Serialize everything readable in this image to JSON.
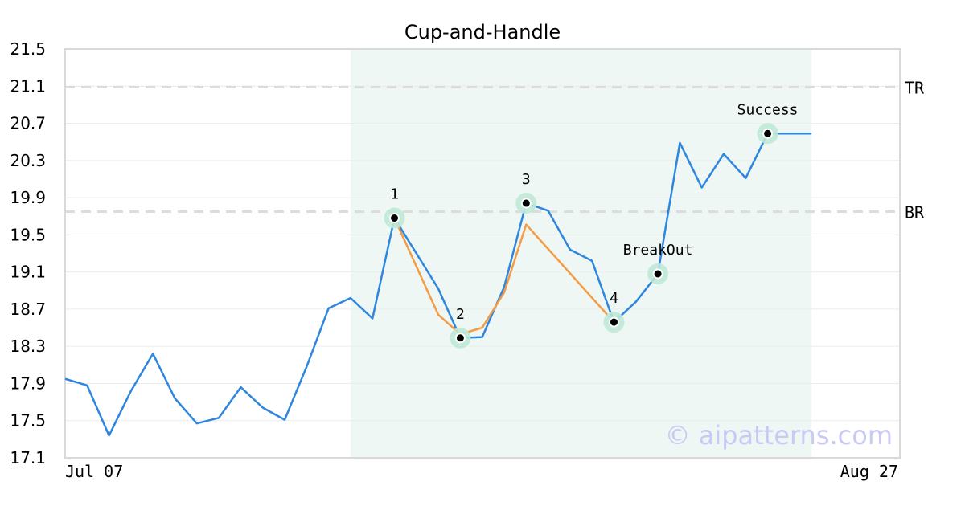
{
  "chart_data": {
    "type": "line",
    "title": "Cup-and-Handle",
    "xlabel": "",
    "ylabel": "",
    "ylim": [
      17.1,
      21.5
    ],
    "yticks": [
      "21.5",
      "21.1",
      "20.7",
      "20.3",
      "19.9",
      "19.5",
      "19.1",
      "18.7",
      "18.3",
      "17.9",
      "17.5",
      "17.1"
    ],
    "xtick_labels": [
      "Jul 07",
      "Aug 27"
    ],
    "grid": true,
    "series": [
      {
        "values": [
          17.95,
          17.88,
          17.34,
          17.82,
          18.22,
          17.74,
          17.47,
          17.53,
          17.86,
          17.64,
          17.51,
          18.08,
          18.71,
          18.82,
          18.6,
          19.68,
          19.3,
          18.92,
          18.39,
          18.4,
          18.94,
          19.84,
          19.76,
          19.34,
          19.22,
          18.56,
          18.78,
          19.08,
          20.49,
          20.01,
          20.37,
          20.11,
          20.59,
          20.59,
          20.59
        ],
        "color": "#2e86de"
      },
      {
        "points": [
          [
            15,
            19.68
          ],
          [
            17,
            18.64
          ],
          [
            18,
            18.43
          ],
          [
            19,
            18.5
          ],
          [
            20,
            18.88
          ],
          [
            21,
            19.61
          ],
          [
            25,
            18.56
          ]
        ],
        "color": "#f39c45"
      }
    ],
    "pattern_region": {
      "start_index": 13,
      "end_index": 34,
      "color": "#eef7f3"
    },
    "levels": [
      {
        "label": "TR",
        "value": 21.09
      },
      {
        "label": "BR",
        "value": 19.75
      }
    ],
    "markers": [
      {
        "label": "1",
        "index": 15,
        "value": 19.68,
        "label_pos": "above"
      },
      {
        "label": "2",
        "index": 18,
        "value": 18.39,
        "label_pos": "above"
      },
      {
        "label": "3",
        "index": 21,
        "value": 19.84,
        "label_pos": "above"
      },
      {
        "label": "4",
        "index": 25,
        "value": 18.56,
        "label_pos": "above"
      },
      {
        "label": "BreakOut",
        "index": 27,
        "value": 19.08,
        "label_pos": "above"
      },
      {
        "label": "Success",
        "index": 32,
        "value": 20.59,
        "label_pos": "above"
      }
    ],
    "watermark": "© aipatterns.com"
  }
}
